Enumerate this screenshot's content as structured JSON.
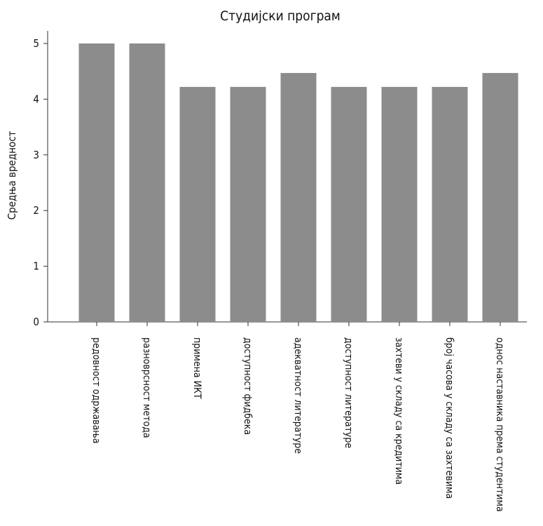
{
  "chart_data": {
    "type": "bar",
    "title": "Студијски програм",
    "ylabel": "Средња вредност",
    "xlabel": "",
    "ylim": [
      0,
      5
    ],
    "yticks": [
      0,
      1,
      2,
      3,
      4,
      5
    ],
    "categories": [
      "редовност одржавања",
      "разноврсност метода",
      "примена ИКТ",
      "доступност фидбека",
      "адекватност литературе",
      "доступност литературе",
      "захтеви у складу са кредитима",
      "број часова у складу са захтевима",
      "однос наставника према студентима"
    ],
    "values": [
      5,
      5,
      4.22,
      4.22,
      4.47,
      4.22,
      4.22,
      4.22,
      4.47
    ],
    "bar_color": "#8c8c8c",
    "grid": false,
    "legend": "none"
  }
}
